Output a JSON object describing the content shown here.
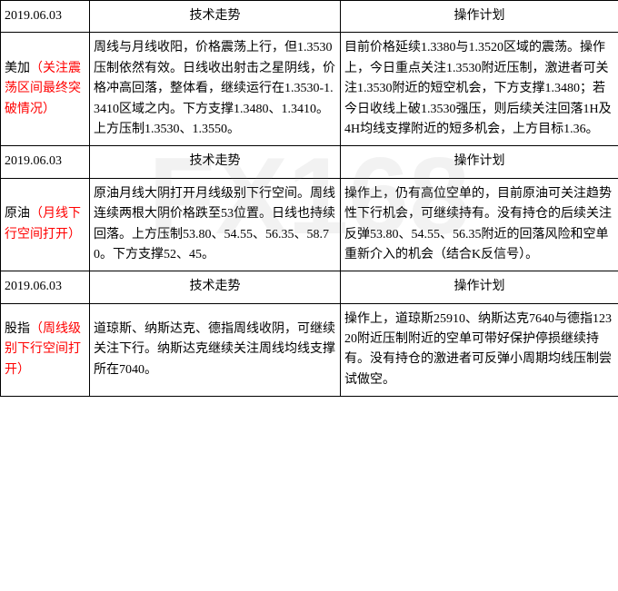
{
  "sections": [
    {
      "date": "2019.06.03",
      "tech_header": "技术走势",
      "plan_header": "操作计划",
      "label_black": "美加",
      "label_red": "（关注震荡区间最终突破情况）",
      "tech": "周线与月线收阳，价格震荡上行，但1.3530压制依然有效。日线收出射击之星阴线，价格冲高回落，整体看，继续运行在1.3530-1.3410区域之内。下方支撑1.3480、1.3410。上方压制1.3530、1.3550。",
      "plan": "目前价格延续1.3380与1.3520区域的震荡。操作上，今日重点关注1.3530附近压制，激进者可关注1.3530附近的短空机会，下方支撑1.3480；若今日收线上破1.3530强压，则后续关注回落1H及4H均线支撑附近的短多机会，上方目标1.36。"
    },
    {
      "date": "2019.06.03",
      "tech_header": "技术走势",
      "plan_header": "操作计划",
      "label_black": "原油",
      "label_red": "（月线下行空间打开）",
      "tech": "原油月线大阴打开月线级别下行空间。周线连续两根大阴价格跌至53位置。日线也持续回落。上方压制53.80、54.55、56.35、58.70。下方支撑52、45。",
      "plan": "操作上，仍有高位空单的，目前原油可关注趋势性下行机会，可继续持有。没有持仓的后续关注反弹53.80、54.55、56.35附近的回落风险和空单重新介入的机会（结合K反信号）。"
    },
    {
      "date": "2019.06.03",
      "tech_header": "技术走势",
      "plan_header": "操作计划",
      "label_black": "股指",
      "label_red": "（周线级别下行空间打开）",
      "tech": "道琼斯、纳斯达克、德指周线收阴，可继续关注下行。纳斯达克继续关注周线均线支撑所在7040。",
      "plan": "操作上，道琼斯25910、纳斯达克7640与德指12320附近压制附近的空单可带好保护停损继续持有。没有持仓的激进者可反弹小周期均线压制尝试做空。"
    }
  ],
  "watermark": {
    "text": "FX168",
    "color": "#e5e5e5"
  }
}
